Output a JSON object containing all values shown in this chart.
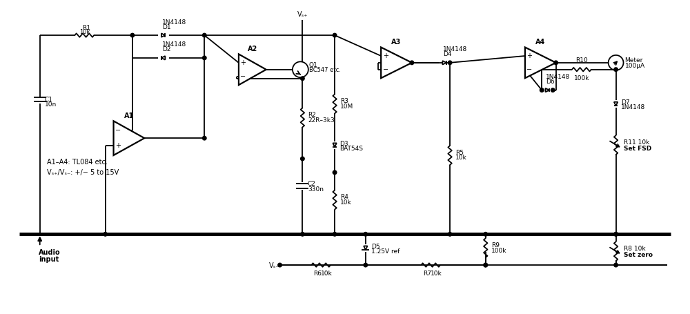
{
  "background": "#ffffff",
  "line_color": "#000000",
  "lw": 1.3,
  "lw_thick": 3.5,
  "lw_comp": 1.3,
  "fig_w": 10.0,
  "fig_h": 4.55,
  "xlim": [
    0,
    100
  ],
  "ylim": [
    0,
    45.5
  ]
}
